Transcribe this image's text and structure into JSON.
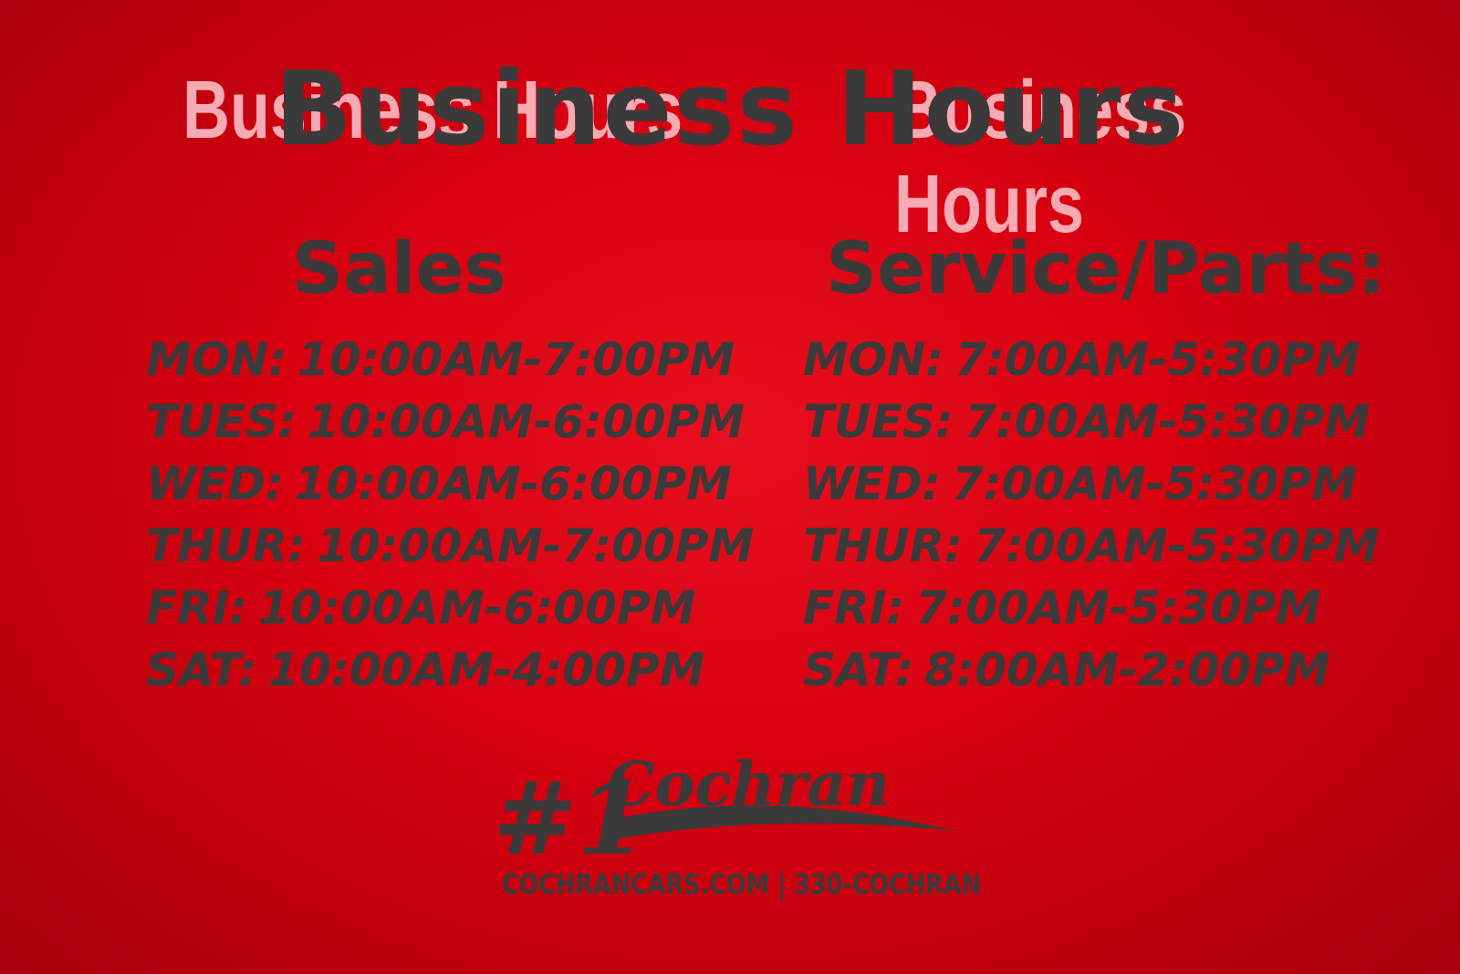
{
  "title": "Business Hours",
  "sales": {
    "heading": "Sales",
    "hours": [
      {
        "day": "MON:",
        "time": "10:00AM-7:00PM"
      },
      {
        "day": "TUES:",
        "time": "10:00AM-6:00PM"
      },
      {
        "day": "WED:",
        "time": "10:00AM-6:00PM"
      },
      {
        "day": "THUR:",
        "time": "10:00AM-7:00PM"
      },
      {
        "day": "FRI:",
        "time": "10:00AM-6:00PM"
      },
      {
        "day": "SAT:",
        "time": "10:00AM-4:00PM"
      }
    ]
  },
  "service": {
    "heading": "Service/Parts:",
    "hours": [
      {
        "day": "MON:",
        "time": "7:00AM-5:30PM"
      },
      {
        "day": "TUES:",
        "time": "7:00AM-5:30PM"
      },
      {
        "day": "WED:",
        "time": "7:00AM-5:30PM"
      },
      {
        "day": "THUR:",
        "time": "7:00AM-5:30PM"
      },
      {
        "day": "FRI:",
        "time": "7:00AM-5:30PM"
      },
      {
        "day": "SAT:",
        "time": "8:00AM-2:00PM"
      }
    ]
  },
  "logo": {
    "text": "#1 Cochran"
  },
  "contact": "COCHRANCARS.COM | 330-COCHRAN",
  "colors": {
    "background": "#d60010",
    "text": "#3a3a3a",
    "glitch_overlay": "#ffc8d0"
  }
}
